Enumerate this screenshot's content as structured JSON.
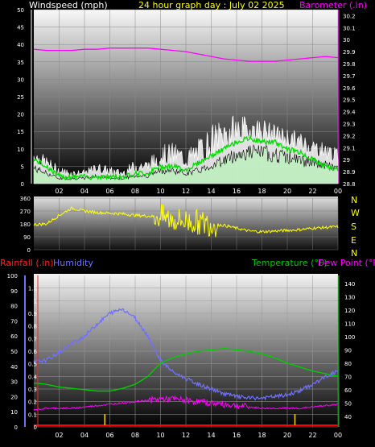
{
  "header": {
    "windspeed_label": "Windspeed (mph)",
    "title": "24 hour graph day : July 02 2025",
    "barometer_label": "Barometer (.in)"
  },
  "compass": [
    "N",
    "W",
    "S",
    "E",
    "N"
  ],
  "bottom_header": {
    "rainfall_label": "Rainfall (.in)",
    "humidity_label": "Humidity",
    "temperature_label": "Temperature (°F)",
    "dewpoint_label": "Dew Point (°F)"
  },
  "colors": {
    "windspeed": "#ffffff",
    "gust": "#00dd00",
    "barometer": "#ff00ff",
    "direction": "#ffff00",
    "rainfall": "#ff0000",
    "humidity": "#7070ff",
    "temperature": "#00cc00",
    "dewpoint": "#ff00ff",
    "rain_bar": "#ffcc00"
  },
  "chart_data": [
    {
      "type": "line",
      "name": "wind-barometer",
      "x_ticks": [
        "02",
        "04",
        "06",
        "08",
        "10",
        "12",
        "14",
        "16",
        "18",
        "20",
        "22",
        "00"
      ],
      "y_left_ticks": [
        0,
        5,
        10,
        15,
        20,
        25,
        30,
        35,
        40,
        45,
        50
      ],
      "ylim_left": [
        0,
        50
      ],
      "y_right_ticks": [
        "28.8",
        "28.9",
        "29",
        "29.1",
        "29.2",
        "29.3",
        "29.4",
        "29.5",
        "29.6",
        "29.7",
        "29.8",
        "29.9",
        "30",
        "30.1",
        "30.2"
      ],
      "ylim_right": [
        28.8,
        30.25
      ],
      "hours": [
        0,
        1,
        2,
        3,
        4,
        5,
        6,
        7,
        8,
        9,
        10,
        11,
        12,
        13,
        14,
        15,
        16,
        17,
        18,
        19,
        20,
        21,
        22,
        23,
        24
      ],
      "barometer": [
        29.92,
        29.91,
        29.91,
        29.91,
        29.92,
        29.92,
        29.93,
        29.93,
        29.93,
        29.93,
        29.92,
        29.91,
        29.9,
        29.88,
        29.86,
        29.84,
        29.83,
        29.82,
        29.82,
        29.82,
        29.83,
        29.84,
        29.85,
        29.86,
        29.85
      ],
      "windspeed_avg": [
        6,
        4,
        2,
        2,
        2,
        3,
        2,
        2,
        3,
        3,
        5,
        5,
        4,
        5,
        7,
        9,
        11,
        12,
        12,
        11,
        10,
        9,
        8,
        7,
        6
      ],
      "windspeed_peak": [
        10,
        8,
        5,
        4,
        4,
        6,
        5,
        4,
        7,
        7,
        11,
        12,
        10,
        13,
        17,
        19,
        20,
        19,
        19,
        17,
        16,
        15,
        13,
        12,
        10
      ],
      "gust": [
        7,
        5,
        2,
        2,
        2,
        2,
        2,
        2,
        3,
        3,
        5,
        5,
        4,
        6,
        8,
        10,
        12,
        13,
        12,
        12,
        10,
        9,
        7,
        5,
        4
      ]
    },
    {
      "type": "line",
      "name": "wind-direction",
      "y_ticks": [
        360,
        270,
        180,
        90,
        0
      ],
      "ylim": [
        0,
        360
      ],
      "hours": [
        0,
        1,
        2,
        3,
        4,
        5,
        6,
        7,
        8,
        9,
        10,
        11,
        12,
        13,
        14,
        15,
        16,
        17,
        18,
        19,
        20,
        21,
        22,
        23,
        24
      ],
      "direction": [
        175,
        180,
        240,
        290,
        270,
        260,
        255,
        250,
        240,
        235,
        230,
        210,
        200,
        190,
        180,
        170,
        150,
        130,
        125,
        130,
        135,
        140,
        150,
        155,
        160
      ]
    },
    {
      "type": "line",
      "name": "rain-humidity-temp-dew",
      "y_rain_ticks": [
        "0",
        "0.1",
        "0.2",
        "0.3",
        "0.4",
        "0.5",
        "0.6",
        "0.7",
        "0.8",
        "0.9",
        "1",
        "1.1"
      ],
      "ylim_rain": [
        0,
        1.2
      ],
      "y_humidity_ticks": [
        0,
        10,
        20,
        30,
        40,
        50,
        60,
        70,
        80,
        90,
        100
      ],
      "ylim_humidity": [
        0,
        100
      ],
      "y_temp_ticks": [
        40,
        50,
        60,
        70,
        80,
        90,
        100,
        110,
        120,
        130,
        140
      ],
      "ylim_temp": [
        32,
        146
      ],
      "hours": [
        0,
        1,
        2,
        3,
        4,
        5,
        6,
        7,
        8,
        9,
        10,
        11,
        12,
        13,
        14,
        15,
        16,
        17,
        18,
        19,
        20,
        21,
        22,
        23,
        24
      ],
      "humidity": [
        43,
        44,
        49,
        55,
        60,
        68,
        75,
        78,
        72,
        60,
        44,
        36,
        32,
        28,
        25,
        22,
        20,
        19,
        19,
        20,
        21,
        24,
        28,
        33,
        37
      ],
      "temperature": [
        65,
        64,
        62,
        61,
        60,
        59,
        59,
        61,
        64,
        70,
        80,
        84,
        87,
        89,
        90,
        91,
        90,
        89,
        87,
        84,
        80,
        77,
        74,
        72,
        70
      ],
      "dewpoint": [
        45,
        46,
        46,
        46,
        47,
        48,
        49,
        50,
        51,
        52,
        53,
        53,
        52,
        51,
        50,
        49,
        48,
        47,
        46,
        46,
        46,
        46,
        47,
        48,
        49
      ],
      "rainfall": [
        0,
        0,
        0,
        0,
        0,
        0,
        0,
        0,
        0,
        0,
        0,
        0,
        0,
        0,
        0,
        0,
        0,
        0,
        0,
        0,
        0,
        0,
        0,
        0,
        0
      ],
      "rain_ticks_hours": [
        5.6,
        20.6
      ]
    }
  ]
}
